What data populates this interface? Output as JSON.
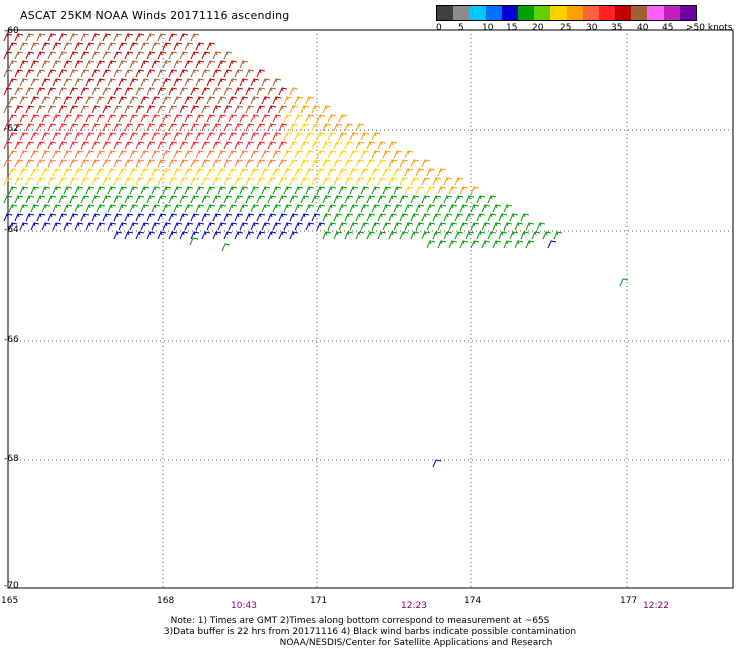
{
  "title": "ASCAT 25KM NOAA Winds 20171116 ascending",
  "legend": {
    "colors": [
      "#404040",
      "#8c8c8c",
      "#00c8ff",
      "#0070ff",
      "#0000d0",
      "#00a000",
      "#60d000",
      "#ffd000",
      "#ffa000",
      "#ff6040",
      "#ff2020",
      "#c00000",
      "#a06030",
      "#ff60ff",
      "#c020c0",
      "#7000a0"
    ],
    "labels": [
      "0",
      "5",
      "10",
      "15",
      "20",
      "25",
      "30",
      "35",
      "40",
      "45",
      ">50 knots"
    ]
  },
  "map_data": {
    "lat_labels": [
      "-60",
      "-62",
      "-64",
      "-66",
      "-68",
      "-70"
    ],
    "lon_labels": [
      "165",
      "168",
      "171",
      "174",
      "177"
    ],
    "time_labels": [
      "10:43",
      "12:23",
      "12:22"
    ]
  },
  "notes": [
    "Note: 1) Times are GMT 2)Times along bottom correspond to measurement at ~65S",
    "3)Data buffer is 22 hrs from 20171116 4) Black wind barbs indicate possible contamination",
    "NOAA/NESDIS/Center for Satellite Applications and Research"
  ]
}
